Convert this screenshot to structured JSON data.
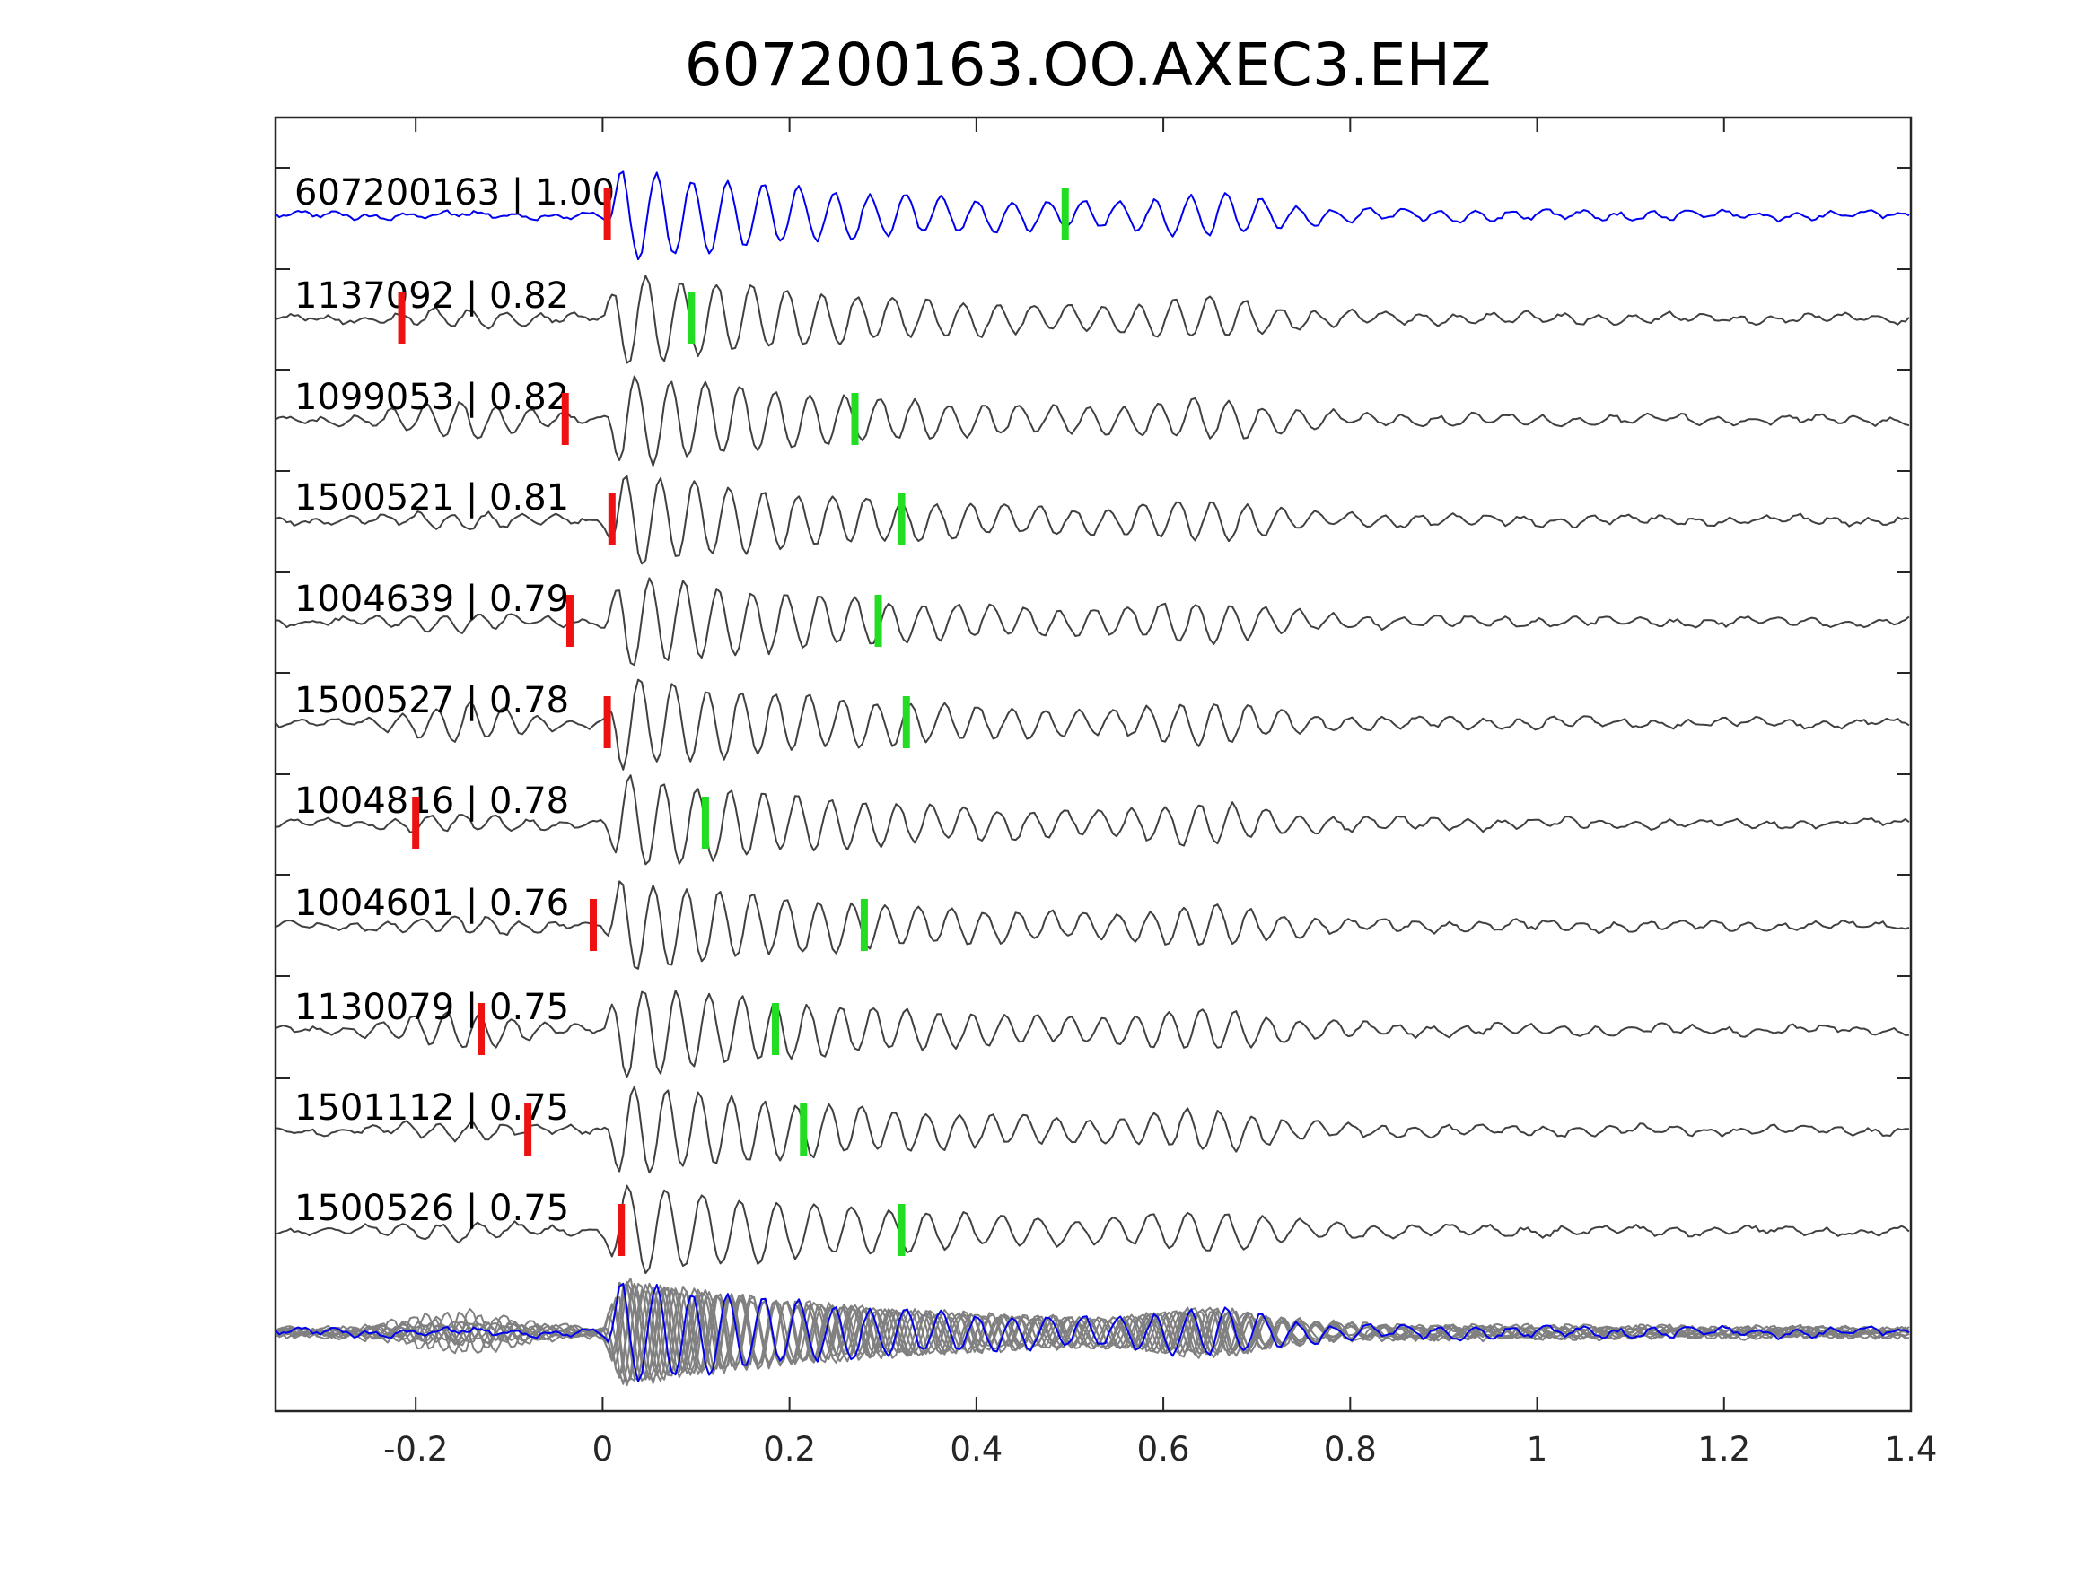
{
  "chart_data": {
    "type": "line",
    "title": "607200163.OO.AXEC3.EHZ",
    "xlabel": "",
    "ylabel": "",
    "xlim": [
      -0.35,
      1.4
    ],
    "xticks": [
      -0.2,
      0,
      0.2,
      0.4,
      0.6,
      0.8,
      1,
      1.2,
      1.4
    ],
    "xtick_labels": [
      "-0.2",
      "0",
      "0.2",
      "0.4",
      "0.6",
      "0.8",
      "1",
      "1.2",
      "1.4"
    ],
    "grid": false,
    "colors": {
      "reference_trace": "#0000ee",
      "other_traces": "#404040",
      "stack_traces": "#808080",
      "p_pick": "#ee1111",
      "s_pick": "#22dd22"
    },
    "series": [
      {
        "id": "607200163",
        "cc": "1.00",
        "label": "607200163 | 1.00",
        "reference": true,
        "p_pick": 0.005,
        "s_pick": 0.495
      },
      {
        "id": "1137092",
        "cc": "0.82",
        "label": "1137092 | 0.82",
        "p_pick": -0.215,
        "s_pick": 0.095
      },
      {
        "id": "1099053",
        "cc": "0.82",
        "label": "1099053 | 0.82",
        "p_pick": -0.04,
        "s_pick": 0.27
      },
      {
        "id": "1500521",
        "cc": "0.81",
        "label": "1500521 | 0.81",
        "p_pick": 0.01,
        "s_pick": 0.32
      },
      {
        "id": "1004639",
        "cc": "0.79",
        "label": "1004639 | 0.79",
        "p_pick": -0.035,
        "s_pick": 0.295
      },
      {
        "id": "1500527",
        "cc": "0.78",
        "label": "1500527 | 0.78",
        "p_pick": 0.005,
        "s_pick": 0.325
      },
      {
        "id": "1004816",
        "cc": "0.78",
        "label": "1004816 | 0.78",
        "p_pick": -0.2,
        "s_pick": 0.11
      },
      {
        "id": "1004601",
        "cc": "0.76",
        "label": "1004601 | 0.76",
        "p_pick": -0.01,
        "s_pick": 0.28
      },
      {
        "id": "1130079",
        "cc": "0.75",
        "label": "1130079 | 0.75",
        "p_pick": -0.13,
        "s_pick": 0.185
      },
      {
        "id": "1501112",
        "cc": "0.75",
        "label": "1501112 | 0.75",
        "p_pick": -0.08,
        "s_pick": 0.215
      },
      {
        "id": "1500526",
        "cc": "0.75",
        "label": "1500526 | 0.75",
        "p_pick": 0.02,
        "s_pick": 0.32
      }
    ],
    "stack": {
      "shows": "overlay of all aligned traces",
      "reference_drawn_on_top": true
    }
  }
}
